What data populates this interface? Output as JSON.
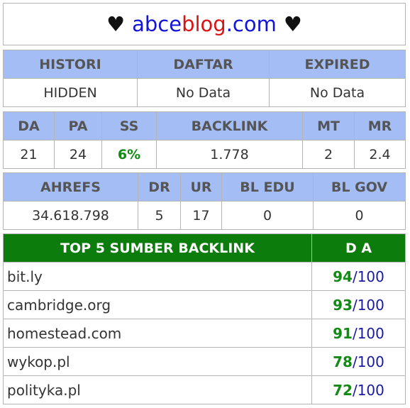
{
  "header": {
    "heart_left": "♥",
    "site_part1": "abce",
    "site_part2": "blog",
    "site_part3": ".com",
    "heart_right": "♥"
  },
  "history_table": {
    "headers": [
      "HISTORI",
      "DAFTAR",
      "EXPIRED"
    ],
    "values": [
      "HIDDEN",
      "No Data",
      "No Data"
    ]
  },
  "metrics_table": {
    "headers": [
      "DA",
      "PA",
      "SS",
      "BACKLINK",
      "MT",
      "MR"
    ],
    "values": [
      "21",
      "24",
      "6%",
      "1.778",
      "2",
      "2.4"
    ]
  },
  "ahrefs_table": {
    "headers": [
      "AHREFS",
      "DR",
      "UR",
      "BL EDU",
      "BL GOV"
    ],
    "values": [
      "34.618.798",
      "5",
      "17",
      "0",
      "0"
    ]
  },
  "top5": {
    "header_source": "TOP 5 SUMBER BACKLINK",
    "header_da": "D A",
    "rows": [
      {
        "domain": "bit.ly",
        "score": "94",
        "max": "/100"
      },
      {
        "domain": "cambridge.org",
        "score": "93",
        "max": "/100"
      },
      {
        "domain": "homestead.com",
        "score": "91",
        "max": "/100"
      },
      {
        "domain": "wykop.pl",
        "score": "78",
        "max": "/100"
      },
      {
        "domain": "polityka.pl",
        "score": "72",
        "max": "/100"
      }
    ]
  },
  "colors": {
    "header_blue": "#a4bdf5",
    "header_green": "#0c7d0c",
    "score_green": "#138a13",
    "brand_blue": "#1414d8",
    "brand_red": "#d81414"
  }
}
